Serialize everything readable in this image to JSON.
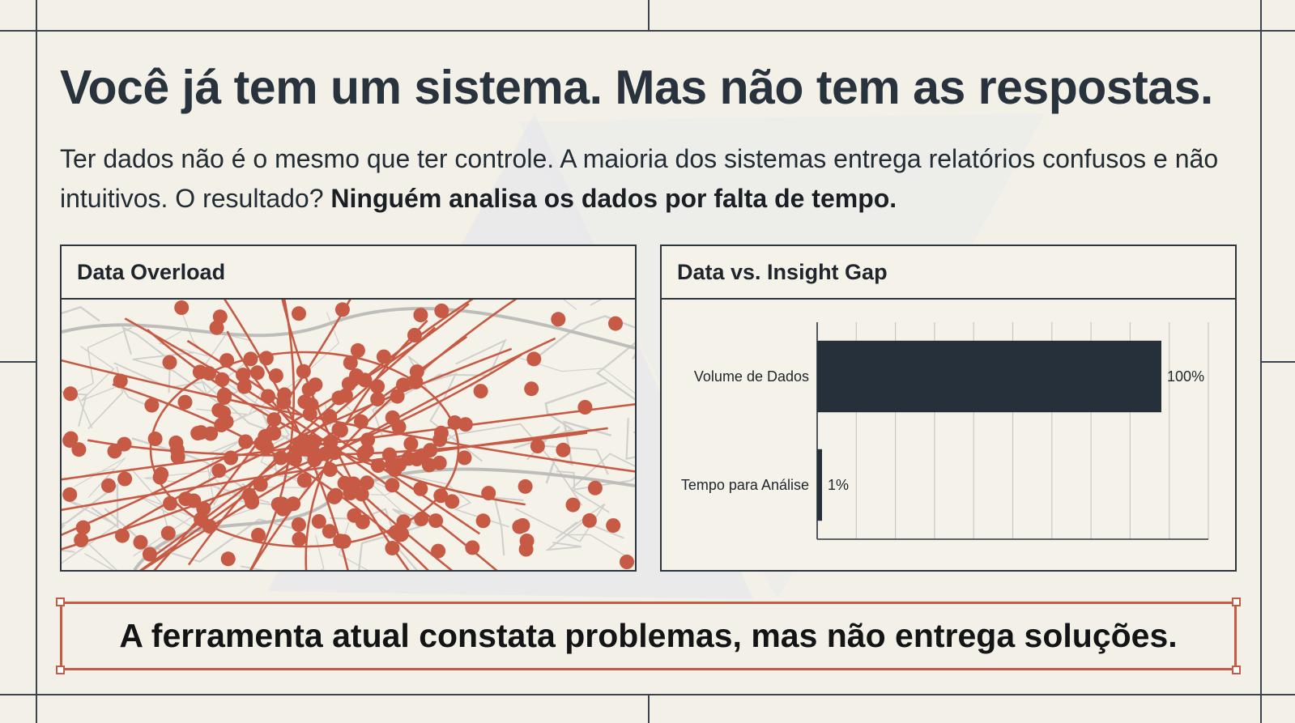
{
  "headline": "Você já tem um sistema. Mas não tem as respostas.",
  "subtext": {
    "lead": "Ter dados não é o mesmo que ter controle. A maioria dos sistemas entrega relatórios confusos e não intuitivos. O resultado? ",
    "emphasis": "Ninguém analisa os dados por falta de tempo."
  },
  "panels": {
    "map": {
      "title": "Data Overload"
    },
    "gap": {
      "title": "Data vs. Insight Gap"
    }
  },
  "callout": "A ferramenta atual constata problemas, mas não entrega soluções.",
  "colors": {
    "background": "#f3f0e8",
    "ink": "#28333d",
    "accent_red": "#c75a44",
    "bar": "#25303b"
  },
  "chart_data": {
    "type": "bar",
    "orientation": "horizontal",
    "categories": [
      "Volume de Dados",
      "Tempo para Análise"
    ],
    "values": [
      100,
      1
    ],
    "value_labels": [
      "100%",
      "1%"
    ],
    "xlim": [
      0,
      100
    ],
    "grid": true
  }
}
